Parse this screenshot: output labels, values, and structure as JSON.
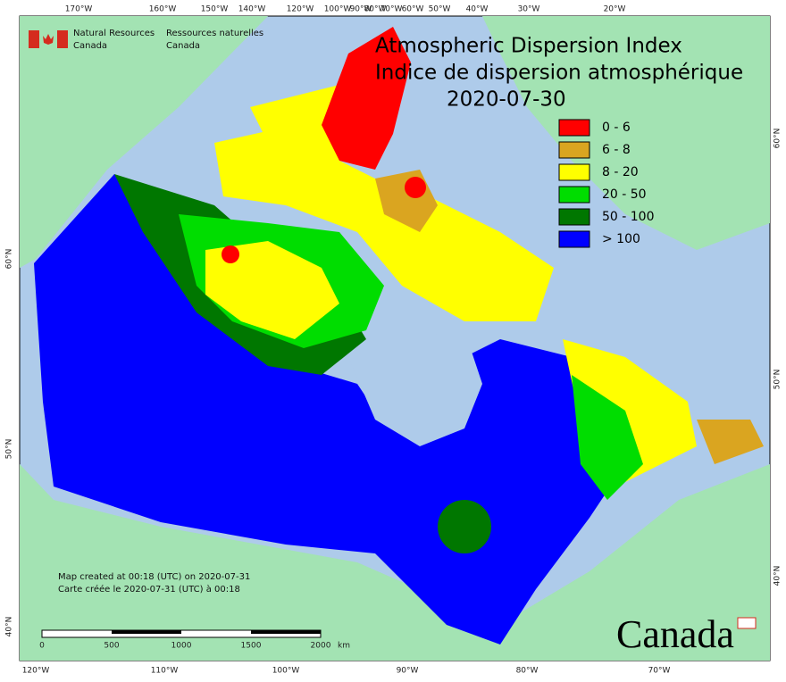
{
  "header": {
    "agency_en": [
      "Natural Resources",
      "Canada"
    ],
    "agency_fr": [
      "Ressources naturelles",
      "Canada"
    ]
  },
  "title": [
    "Atmospheric Dispersion Index",
    "Indice de dispersion atmosphérique",
    "2020-07-30"
  ],
  "legend": [
    {
      "label": "0 - 6",
      "color": "#ff0000"
    },
    {
      "label": "6 - 8",
      "color": "#daa520"
    },
    {
      "label": "8 - 20",
      "color": "#ffff00"
    },
    {
      "label": "20 - 50",
      "color": "#00dd00"
    },
    {
      "label": "50 - 100",
      "color": "#007700"
    },
    {
      "label": "> 100",
      "color": "#0000ff"
    }
  ],
  "top_longitudes": [
    "170°W",
    "160°W",
    "150°W",
    "140°W",
    "120°W",
    "100°W",
    "90°W",
    "80°W",
    "70°W",
    "60°W",
    "50°W",
    "40°W",
    "30°W",
    "20°W"
  ],
  "bottom_longitudes": [
    "120°W",
    "110°W",
    "100°W",
    "90°W",
    "80°W",
    "70°W"
  ],
  "left_latitudes": [
    "60°N",
    "50°N",
    "40°N"
  ],
  "right_latitudes": [
    "60°N",
    "50°N",
    "40°N"
  ],
  "credits": [
    "Map created at 00:18 (UTC) on 2020-07-31",
    "Carte créée le 2020-07-31 (UTC) à 00:18"
  ],
  "scale": {
    "labels": [
      "0",
      "500",
      "1000",
      "1500",
      "2000"
    ],
    "unit": "km"
  },
  "wordmark": "Canada"
}
